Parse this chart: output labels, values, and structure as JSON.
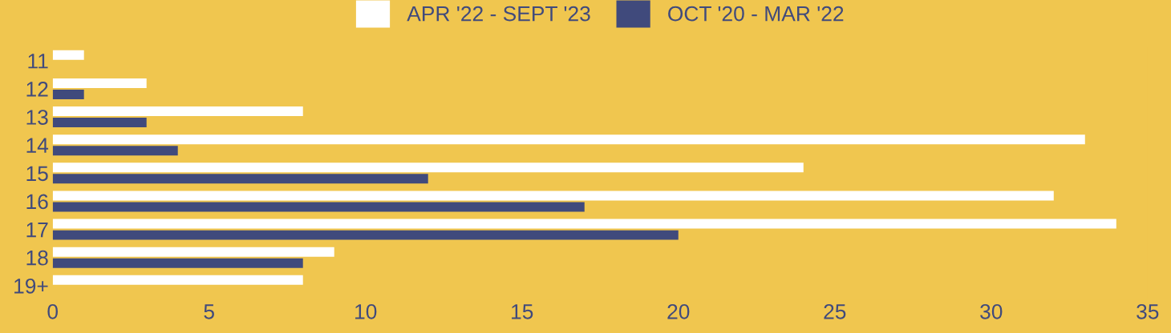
{
  "chart_data": {
    "type": "bar",
    "orientation": "horizontal",
    "categories": [
      "11",
      "12",
      "13",
      "14",
      "15",
      "16",
      "17",
      "18",
      "19+"
    ],
    "series": [
      {
        "name": "APR '22 - SEPT '23",
        "color": "#ffffff",
        "values": [
          1,
          3,
          8,
          33,
          24,
          32,
          34,
          9,
          8
        ]
      },
      {
        "name": "OCT '20 - MAR '22",
        "color": "#404a7c",
        "values": [
          0,
          1,
          3,
          4,
          12,
          17,
          20,
          8,
          0
        ]
      }
    ],
    "xlim": [
      0,
      35
    ],
    "xticks": [
      0,
      5,
      10,
      15,
      20,
      25,
      30,
      35
    ],
    "grid": false,
    "legend": "top"
  }
}
